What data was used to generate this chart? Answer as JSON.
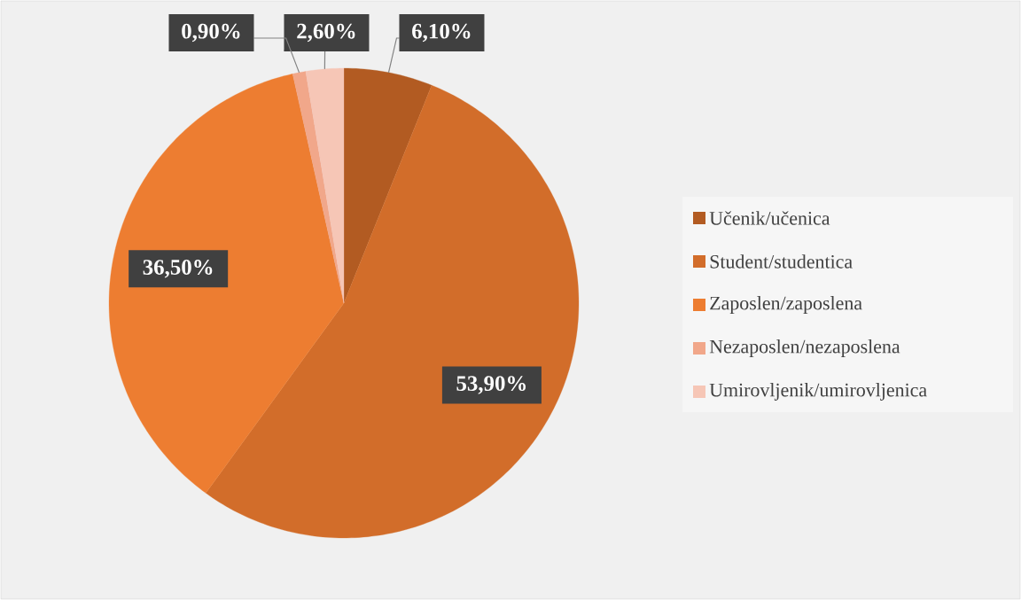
{
  "chart_data": {
    "type": "pie",
    "categories": [
      "Učenik/učenica",
      "Student/studentica",
      "Zaposlen/zaposlena",
      "Nezaposlen/nezaposlena",
      "Umirovljenik/umirovljenica"
    ],
    "values": [
      6.1,
      53.9,
      36.5,
      0.9,
      2.6
    ],
    "value_labels": [
      "6,10%",
      "53,90%",
      "36,50%",
      "0,90%",
      "2,60%"
    ],
    "colors": [
      "#b25b22",
      "#d26d2a",
      "#ed7d31",
      "#f1a78a",
      "#f6c6b6"
    ],
    "legend": "right"
  }
}
